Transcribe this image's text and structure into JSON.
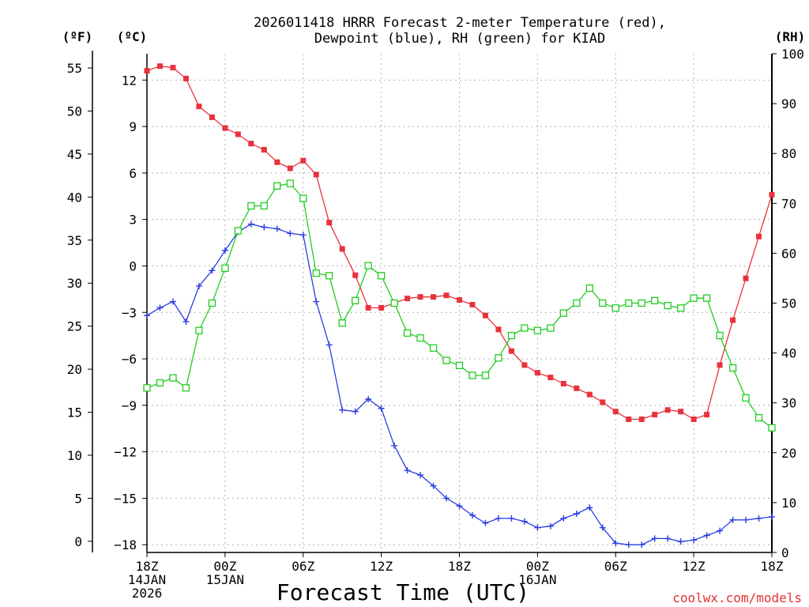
{
  "title_line1": "2026011418 HRRR Forecast 2-meter Temperature (red),",
  "title_line2": "Dewpoint (blue), RH (green) for KIAD",
  "credit": "coolwx.com/models",
  "colors": {
    "temperature": "#e8323c",
    "dewpoint": "#2a3ee0",
    "rh": "#22cc22",
    "axis": "#000000"
  },
  "chart_data": {
    "type": "line",
    "xlabel": "Forecast Time (UTC)",
    "x_hours": [
      0,
      1,
      2,
      3,
      4,
      5,
      6,
      7,
      8,
      9,
      10,
      11,
      12,
      13,
      14,
      15,
      16,
      17,
      18,
      19,
      20,
      21,
      22,
      23,
      24,
      25,
      26,
      27,
      28,
      29,
      30,
      31,
      32,
      33,
      34,
      35,
      36,
      37,
      38,
      39,
      40,
      41,
      42,
      43,
      44,
      45,
      46,
      47,
      48
    ],
    "xlim": [
      0,
      48
    ],
    "x_ticks": [
      {
        "hour": 0,
        "lines": [
          "18Z",
          "14JAN",
          "2026"
        ]
      },
      {
        "hour": 6,
        "lines": [
          "00Z",
          "15JAN"
        ]
      },
      {
        "hour": 12,
        "lines": [
          "06Z"
        ]
      },
      {
        "hour": 18,
        "lines": [
          "12Z"
        ]
      },
      {
        "hour": 24,
        "lines": [
          "18Z"
        ]
      },
      {
        "hour": 30,
        "lines": [
          "00Z",
          "16JAN"
        ]
      },
      {
        "hour": 36,
        "lines": [
          "06Z"
        ]
      },
      {
        "hour": 42,
        "lines": [
          "12Z"
        ]
      },
      {
        "hour": 48,
        "lines": [
          "18Z"
        ]
      }
    ],
    "axes": {
      "fahrenheit": {
        "label": "(ºF)",
        "ticks": [
          0,
          5,
          10,
          15,
          20,
          25,
          30,
          35,
          40,
          45,
          50,
          55
        ]
      },
      "celsius": {
        "label": "(ºC)",
        "ticks": [
          -18,
          -15,
          -12,
          -9,
          -6,
          -3,
          0,
          3,
          6,
          9,
          12
        ],
        "ylim": [
          -18.5,
          13.7
        ]
      },
      "rh": {
        "label": "(RH)",
        "ticks": [
          0,
          10,
          20,
          30,
          40,
          50,
          60,
          70,
          80,
          90,
          100
        ],
        "ylim": [
          0,
          100
        ]
      }
    },
    "series": [
      {
        "name": "Temperature",
        "unit": "C",
        "marker": "filled-square",
        "values": [
          12.6,
          12.9,
          12.8,
          12.1,
          10.3,
          9.6,
          8.9,
          8.5,
          7.9,
          7.5,
          6.7,
          6.3,
          6.8,
          5.9,
          2.8,
          1.1,
          -0.6,
          -2.7,
          -2.7,
          -2.4,
          -2.1,
          -2.0,
          -2.0,
          -1.9,
          -2.2,
          -2.5,
          -3.2,
          -4.1,
          -5.5,
          -6.4,
          -6.9,
          -7.2,
          -7.6,
          -7.9,
          -8.3,
          -8.8,
          -9.4,
          -9.9,
          -9.9,
          -9.6,
          -9.3,
          -9.4,
          -9.9,
          -9.6,
          -6.4,
          -3.5,
          -0.8,
          1.9,
          4.6
        ]
      },
      {
        "name": "Dewpoint",
        "unit": "C",
        "marker": "plus",
        "values": [
          -3.2,
          -2.7,
          -2.3,
          -3.6,
          -1.3,
          -0.3,
          1.0,
          2.2,
          2.7,
          2.5,
          2.4,
          2.1,
          2.0,
          -2.3,
          -5.1,
          -9.3,
          -9.4,
          -8.6,
          -9.2,
          -11.6,
          -13.2,
          -13.5,
          -14.2,
          -15.0,
          -15.5,
          -16.1,
          -16.6,
          -16.3,
          -16.3,
          -16.5,
          -16.9,
          -16.8,
          -16.3,
          -16.0,
          -15.6,
          -16.9,
          -17.9,
          -18.0,
          -18.0,
          -17.6,
          -17.6,
          -17.8,
          -17.7,
          -17.4,
          -17.1,
          -16.4,
          -16.4,
          -16.3,
          -16.2
        ]
      },
      {
        "name": "RH",
        "unit": "%",
        "marker": "open-square",
        "values": [
          33,
          34,
          35,
          33,
          44.5,
          50,
          57,
          64.5,
          69.5,
          69.5,
          73.5,
          74,
          71,
          56,
          55.5,
          46,
          50.5,
          57.5,
          55.5,
          50,
          44,
          43,
          41,
          38.5,
          37.5,
          35.5,
          35.5,
          39,
          43.5,
          45,
          44.5,
          45,
          48,
          50,
          53,
          50,
          49,
          50,
          50,
          50.5,
          49.5,
          49,
          51,
          51,
          43.5,
          37,
          31,
          27,
          25
        ]
      }
    ]
  }
}
